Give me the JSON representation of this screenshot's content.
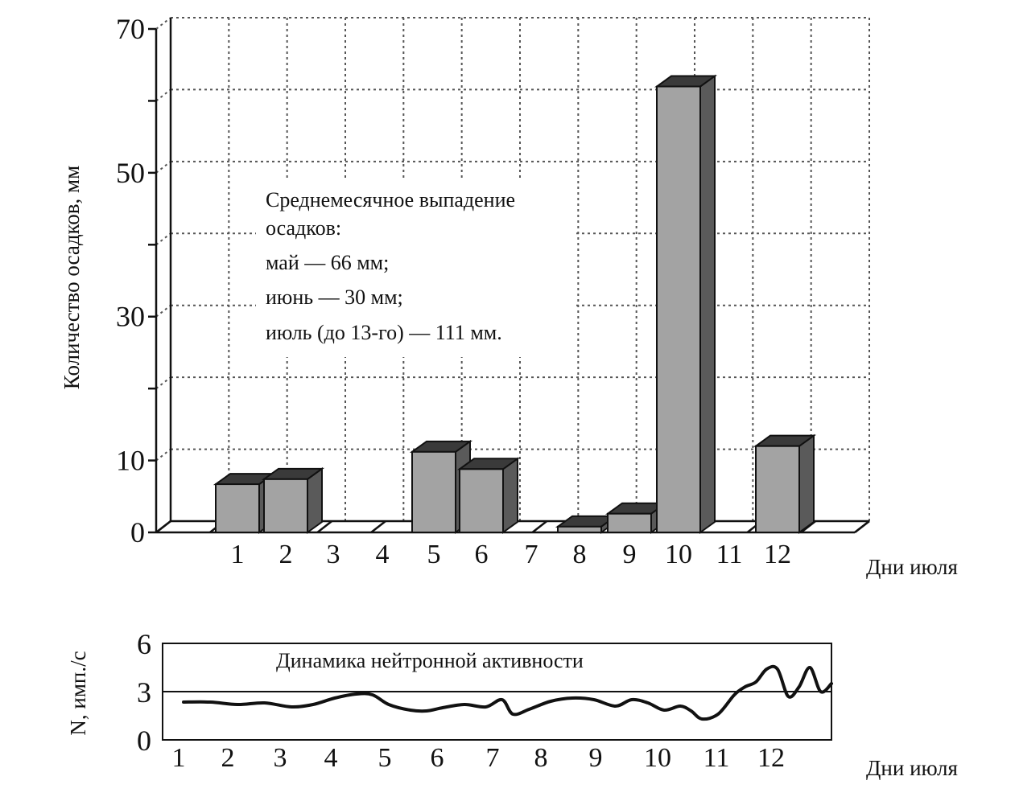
{
  "chart_data": [
    {
      "type": "bar",
      "ylabel": "Количество осадков, мм",
      "xlabel": "Дни июля",
      "ytick_labels": [
        "0",
        "10",
        "30",
        "50",
        "70"
      ],
      "ylim": [
        0,
        70
      ],
      "grid": true,
      "style": "3d",
      "bar_colors": {
        "front": "#a3a3a3",
        "top": "#3a3a3a",
        "side": "#5a5a5a"
      },
      "categories": [
        "1",
        "2",
        "3",
        "4",
        "5",
        "6",
        "7",
        "8",
        "9",
        "10",
        "11",
        "12"
      ],
      "values": [
        6.7,
        7.4,
        0,
        0,
        11.2,
        8.8,
        0,
        0.8,
        2.6,
        62,
        0,
        12
      ],
      "annotation": {
        "lines": [
          "Среднемесячное выпадение",
          "осадков:",
          "май — 66 мм;",
          "июнь — 30 мм;",
          "июль (до 13-го) — 111 мм."
        ]
      }
    },
    {
      "type": "line",
      "title": "Динамика нейтронной активности",
      "ylabel": "N, имп./с",
      "xlabel": "Дни июля",
      "ytick_labels": [
        "0",
        "3",
        "6"
      ],
      "ylim": [
        0,
        6
      ],
      "reference_line": 3,
      "x_tick_labels": [
        "1",
        "2",
        "3",
        "4",
        "5",
        "6",
        "7",
        "8",
        "9",
        "10",
        "11",
        "12"
      ],
      "series": [
        {
          "x": [
            1.0,
            1.5,
            2.0,
            2.5,
            3.0,
            3.4,
            3.8,
            4.2,
            4.5,
            4.8,
            5.2,
            5.5,
            5.8,
            6.2,
            6.6,
            6.9,
            7.1,
            7.4,
            7.8,
            8.2,
            8.6,
            9.0,
            9.3,
            9.6,
            9.9,
            10.2,
            10.4,
            10.6,
            10.9,
            11.2,
            11.4,
            11.6,
            11.8,
            12.0,
            12.2,
            12.4,
            12.6,
            12.8,
            13.0
          ],
          "y": [
            2.35,
            2.35,
            2.2,
            2.3,
            2.05,
            2.2,
            2.6,
            2.85,
            2.8,
            2.2,
            1.85,
            1.8,
            2.0,
            2.2,
            2.05,
            2.5,
            1.6,
            1.9,
            2.4,
            2.6,
            2.5,
            2.1,
            2.5,
            2.3,
            1.85,
            2.1,
            1.8,
            1.3,
            1.6,
            2.8,
            3.3,
            3.6,
            4.4,
            4.4,
            2.7,
            3.3,
            4.5,
            3.0,
            3.5
          ]
        }
      ]
    }
  ]
}
